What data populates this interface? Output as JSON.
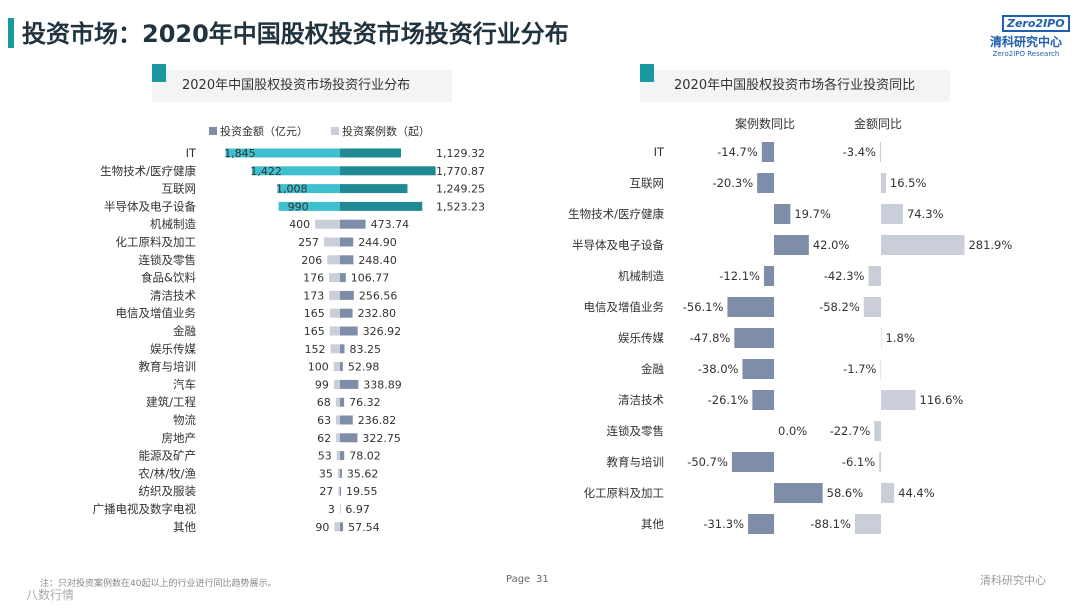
{
  "page": {
    "title": "投资市场：2020年中国股权投资市场投资行业分布",
    "logo": {
      "brand": "Zero2IPO",
      "name_cn": "清科研究中心",
      "name_en": "Zero2IPO Research"
    },
    "page_label": "Page",
    "page_number": "31",
    "footnote": "注：只对投资案例数在40起以上的行业进行同比趋势展示。",
    "footer_brand": "清科研究中心",
    "watermark": "八数行情"
  },
  "colors": {
    "teal": "#3fc0cf",
    "dark_teal": "#1f8a93",
    "slate": "#7f8ea8",
    "light_gray": "#c9ced8",
    "accent": "#1a9aa0"
  },
  "chart_data": [
    {
      "type": "bar",
      "title": "2020年中国股权投资市场投资行业分布",
      "legend": [
        "投资金额（亿元）",
        "投资案例数（起）"
      ],
      "categories": [
        "IT",
        "生物技术/医疗健康",
        "互联网",
        "半导体及电子设备",
        "机械制造",
        "化工原料及加工",
        "连锁及零售",
        "食品&饮料",
        "清洁技术",
        "电信及增值业务",
        "金融",
        "娱乐传媒",
        "教育与培训",
        "汽车",
        "建筑/工程",
        "物流",
        "房地产",
        "能源及矿产",
        "农/林/牧/渔",
        "纺织及服装",
        "广播电视及数字电视",
        "其他"
      ],
      "case_counts": [
        1845,
        1422,
        1008,
        990,
        400,
        257,
        206,
        176,
        173,
        165,
        165,
        152,
        100,
        99,
        68,
        63,
        62,
        53,
        35,
        27,
        3,
        90
      ],
      "amounts": [
        1129.32,
        1770.87,
        1249.25,
        1523.23,
        473.74,
        244.9,
        248.4,
        106.77,
        256.56,
        232.8,
        326.92,
        83.25,
        52.98,
        338.89,
        76.32,
        236.82,
        322.75,
        78.02,
        35.62,
        19.55,
        6.97,
        57.54
      ],
      "case_labels": [
        "1,845",
        "1,422",
        "1,008",
        "990",
        "400",
        "257",
        "206",
        "176",
        "173",
        "165",
        "165",
        "152",
        "100",
        "99",
        "68",
        "63",
        "62",
        "53",
        "35",
        "27",
        "3",
        "90"
      ],
      "amount_labels": [
        "1,129.32",
        "1,770.87",
        "1,249.25",
        "1,523.23",
        "473.74",
        "244.90",
        "248.40",
        "106.77",
        "256.56",
        "232.80",
        "326.92",
        "83.25",
        "52.98",
        "338.89",
        "76.32",
        "236.82",
        "322.75",
        "78.02",
        "35.62",
        "19.55",
        "6.97",
        "57.54"
      ]
    },
    {
      "type": "bar",
      "title": "2020年中国股权投资市场各行业投资同比",
      "legend": [
        "案例数同比",
        "金额同比"
      ],
      "categories": [
        "IT",
        "互联网",
        "生物技术/医疗健康",
        "半导体及电子设备",
        "机械制造",
        "电信及增值业务",
        "娱乐传媒",
        "金融",
        "清洁技术",
        "连锁及零售",
        "教育与培训",
        "化工原料及加工",
        "其他"
      ],
      "case_yoy": [
        -14.7,
        -20.3,
        19.7,
        42.0,
        -12.1,
        -56.1,
        -47.8,
        -38.0,
        -26.1,
        0.0,
        -50.7,
        58.6,
        -31.3
      ],
      "amount_yoy": [
        -3.4,
        16.5,
        74.3,
        281.9,
        -42.3,
        -58.2,
        1.8,
        -1.7,
        116.6,
        -22.7,
        -6.1,
        44.4,
        -88.1
      ],
      "case_labels": [
        "-14.7%",
        "-20.3%",
        "19.7%",
        "42.0%",
        "-12.1%",
        "-56.1%",
        "-47.8%",
        "-38.0%",
        "-26.1%",
        "0.0%",
        "-50.7%",
        "58.6%",
        "-31.3%"
      ],
      "amount_labels": [
        "-3.4%",
        "16.5%",
        "74.3%",
        "281.9%",
        "-42.3%",
        "-58.2%",
        "1.8%",
        "-1.7%",
        "116.6%",
        "-22.7%",
        "-6.1%",
        "44.4%",
        "-88.1%"
      ]
    }
  ]
}
